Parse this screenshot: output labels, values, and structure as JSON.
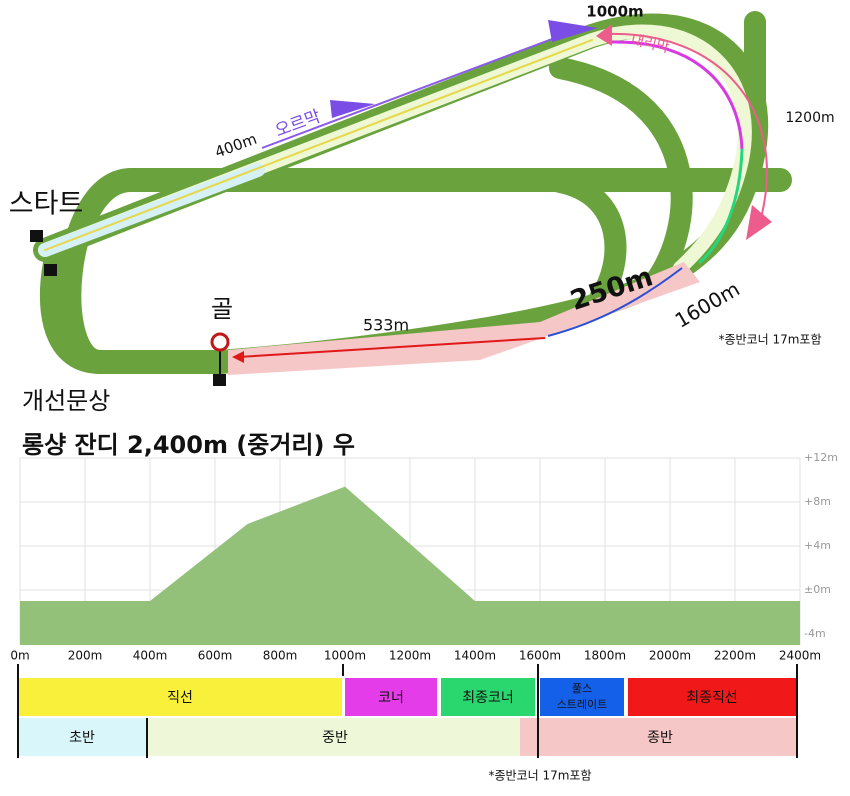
{
  "track_map": {
    "label_1000m": "1000m",
    "label_downhill": "내리막",
    "label_1200m": "1200m",
    "label_400m": "400m",
    "label_uphill": "오르막",
    "label_start": "스타트",
    "label_250m": "250m",
    "label_1600m": "1600m",
    "label_goal": "골",
    "label_533m": "533m",
    "note": "*종반코너 17m포함"
  },
  "title": "개선문상",
  "subtitle": "롱샹 잔디 2,400m (중거리) 우",
  "chart_data": {
    "type": "area",
    "color": "#93c17a",
    "x": [
      0,
      400,
      700,
      1000,
      1400,
      2400
    ],
    "values": [
      -1,
      -1,
      6,
      9.4,
      -1,
      -1
    ],
    "xlim": [
      0,
      2400
    ],
    "ylim": [
      -5,
      12
    ],
    "xticks": [
      {
        "value": 0,
        "label": "0m"
      },
      {
        "value": 200,
        "label": "200m"
      },
      {
        "value": 400,
        "label": "400m"
      },
      {
        "value": 600,
        "label": "600m"
      },
      {
        "value": 800,
        "label": "800m"
      },
      {
        "value": 1000,
        "label": "1000m"
      },
      {
        "value": 1200,
        "label": "1200m"
      },
      {
        "value": 1400,
        "label": "1400m"
      },
      {
        "value": 1600,
        "label": "1600m"
      },
      {
        "value": 1800,
        "label": "1800m"
      },
      {
        "value": 2000,
        "label": "2000m"
      },
      {
        "value": 2200,
        "label": "2200m"
      },
      {
        "value": 2400,
        "label": "2400m"
      }
    ],
    "yticks": [
      {
        "value": 12,
        "label": "+12m"
      },
      {
        "value": 8,
        "label": "+8m"
      },
      {
        "value": 4,
        "label": "+4m"
      },
      {
        "value": 0,
        "label": "±0m"
      },
      {
        "value": -4,
        "label": "-4m"
      }
    ],
    "grid": true
  },
  "phases": {
    "sections": [
      "직선",
      "코너",
      "최종코너",
      [
        "풀스",
        "스트레이트"
      ],
      "최종직선"
    ],
    "stages": [
      "초반",
      "중반",
      "종반"
    ]
  },
  "footnote": "*종반코너 17m포함"
}
